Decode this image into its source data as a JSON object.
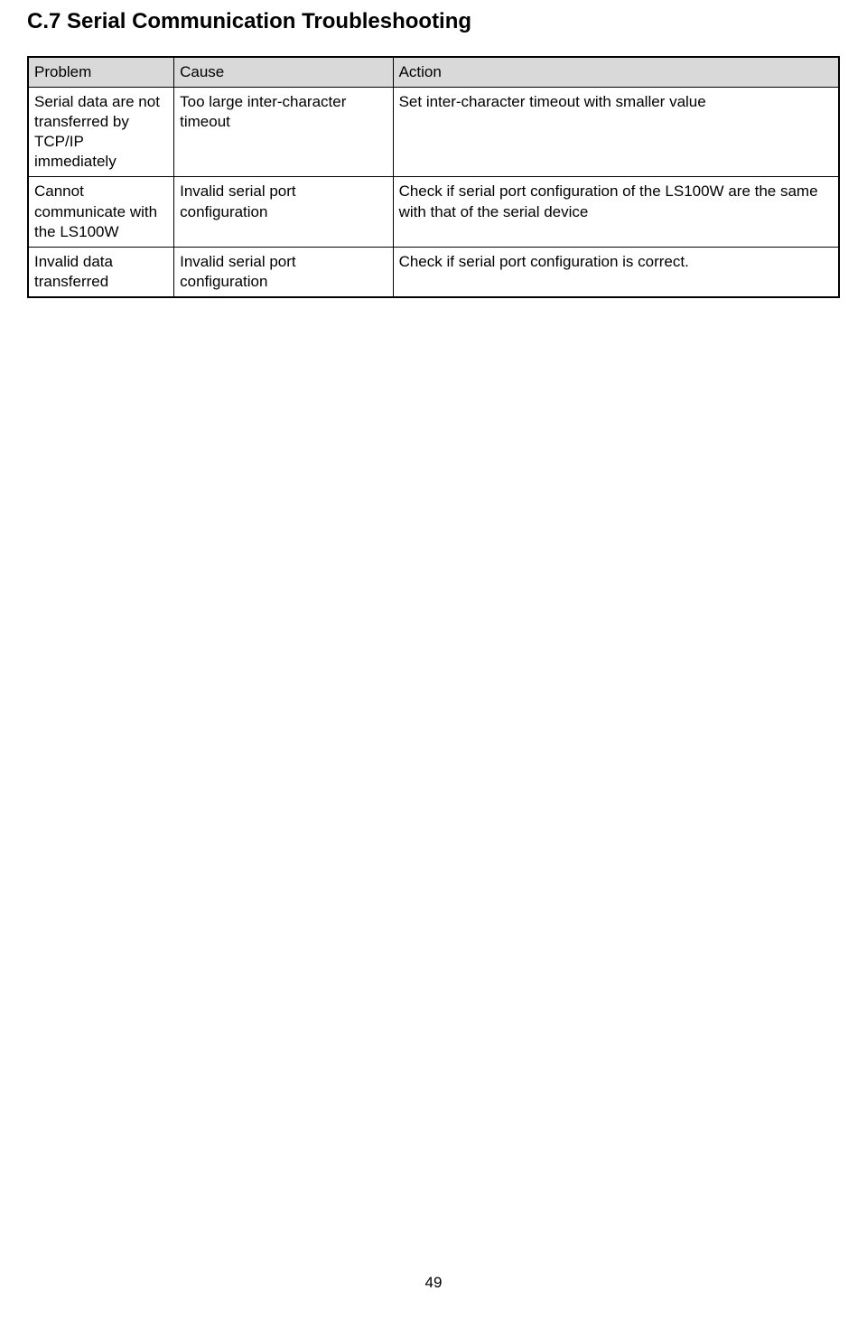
{
  "heading": "C.7 Serial Communication Troubleshooting",
  "table": {
    "columns": [
      "Problem",
      "Cause",
      "Action"
    ],
    "rows": [
      {
        "problem": "Serial data are not transferred by TCP/IP immediately",
        "cause": "Too large inter-character timeout",
        "action": "Set inter-character timeout with smaller value"
      },
      {
        "problem": "Cannot communicate with the LS100W",
        "cause": "Invalid serial port configuration",
        "action": "Check if serial port configuration of the LS100W are the same with that of the serial device"
      },
      {
        "problem": "Invalid data transferred",
        "cause": "Invalid serial port configuration",
        "action": "Check if serial port configuration is correct."
      }
    ]
  },
  "page_number": "49"
}
